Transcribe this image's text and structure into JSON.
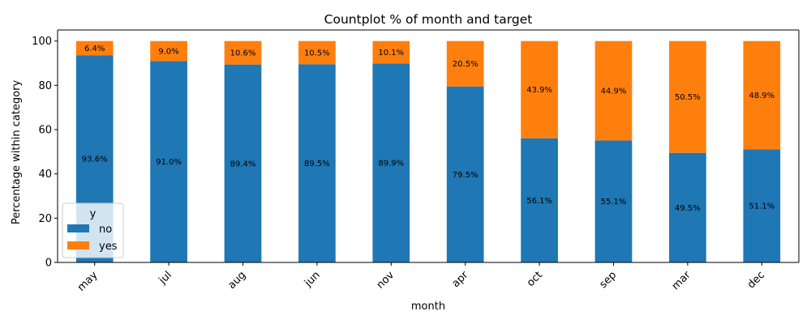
{
  "chart_data": {
    "type": "bar",
    "stacked": true,
    "title": "Countplot % of month and target",
    "xlabel": "month",
    "ylabel": "Percentage within category",
    "ylim": [
      0,
      105
    ],
    "yticks": [
      0,
      20,
      40,
      60,
      80,
      100
    ],
    "categories": [
      "may",
      "jul",
      "aug",
      "jun",
      "nov",
      "apr",
      "oct",
      "sep",
      "mar",
      "dec"
    ],
    "series": [
      {
        "name": "no",
        "color": "#1f77b4",
        "values": [
          93.6,
          91.0,
          89.4,
          89.5,
          89.9,
          79.5,
          56.1,
          55.1,
          49.5,
          51.1
        ]
      },
      {
        "name": "yes",
        "color": "#ff7f0e",
        "values": [
          6.4,
          9.0,
          10.6,
          10.5,
          10.1,
          20.5,
          43.9,
          44.9,
          50.5,
          48.9
        ]
      }
    ],
    "legend": {
      "title": "y",
      "placement": "lower-left"
    },
    "grid": false
  }
}
